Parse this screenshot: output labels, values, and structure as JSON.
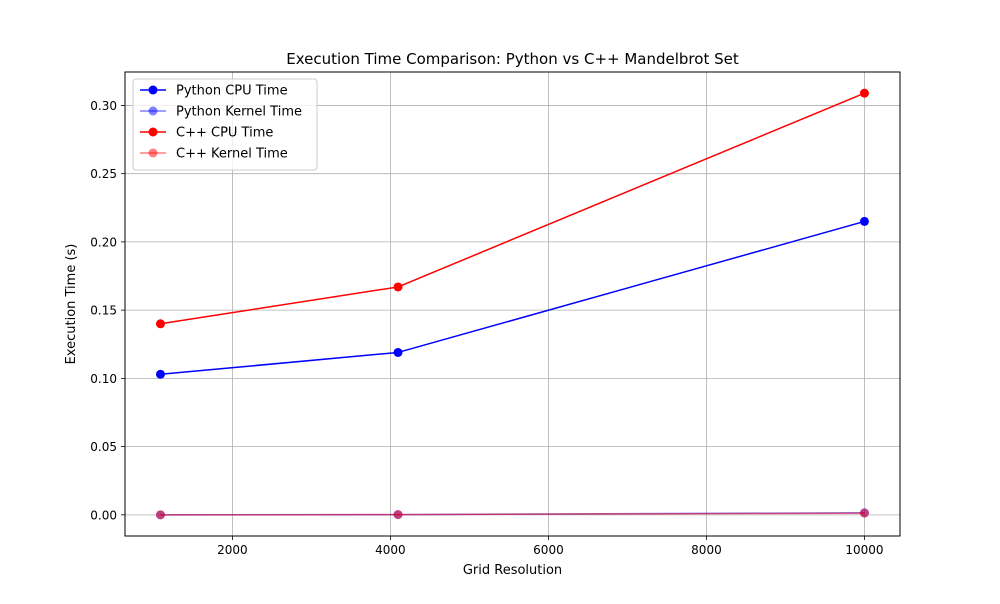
{
  "chart_data": {
    "type": "line",
    "title": "Execution Time Comparison: Python vs C++ Mandelbrot Set",
    "xlabel": "Grid Resolution",
    "ylabel": "Execution Time (s)",
    "xlim": [
      640,
      10450
    ],
    "ylim": [
      -0.0155,
      0.3245
    ],
    "xticks": [
      2000,
      4000,
      6000,
      8000,
      10000
    ],
    "xtick_labels": [
      "2000",
      "4000",
      "6000",
      "8000",
      "10000"
    ],
    "yticks": [
      0.0,
      0.05,
      0.1,
      0.15,
      0.2,
      0.25,
      0.3
    ],
    "ytick_labels": [
      "0.00",
      "0.05",
      "0.10",
      "0.15",
      "0.20",
      "0.25",
      "0.30"
    ],
    "grid": true,
    "legend_position": "upper left",
    "x": [
      1089,
      4096,
      10000
    ],
    "series": [
      {
        "name": "Python CPU Time",
        "color": "#0000ff",
        "alpha": 1.0,
        "values": [
          0.103,
          0.119,
          0.215
        ]
      },
      {
        "name": "Python Kernel Time",
        "color": "#0000ff",
        "alpha": 0.5,
        "values": [
          0.0,
          0.0002,
          0.0015
        ]
      },
      {
        "name": "C++ CPU Time",
        "color": "#ff0000",
        "alpha": 1.0,
        "values": [
          0.14,
          0.167,
          0.309
        ]
      },
      {
        "name": "C++ Kernel Time",
        "color": "#ff0000",
        "alpha": 0.5,
        "values": [
          0.0,
          0.0002,
          0.0012
        ]
      }
    ]
  }
}
